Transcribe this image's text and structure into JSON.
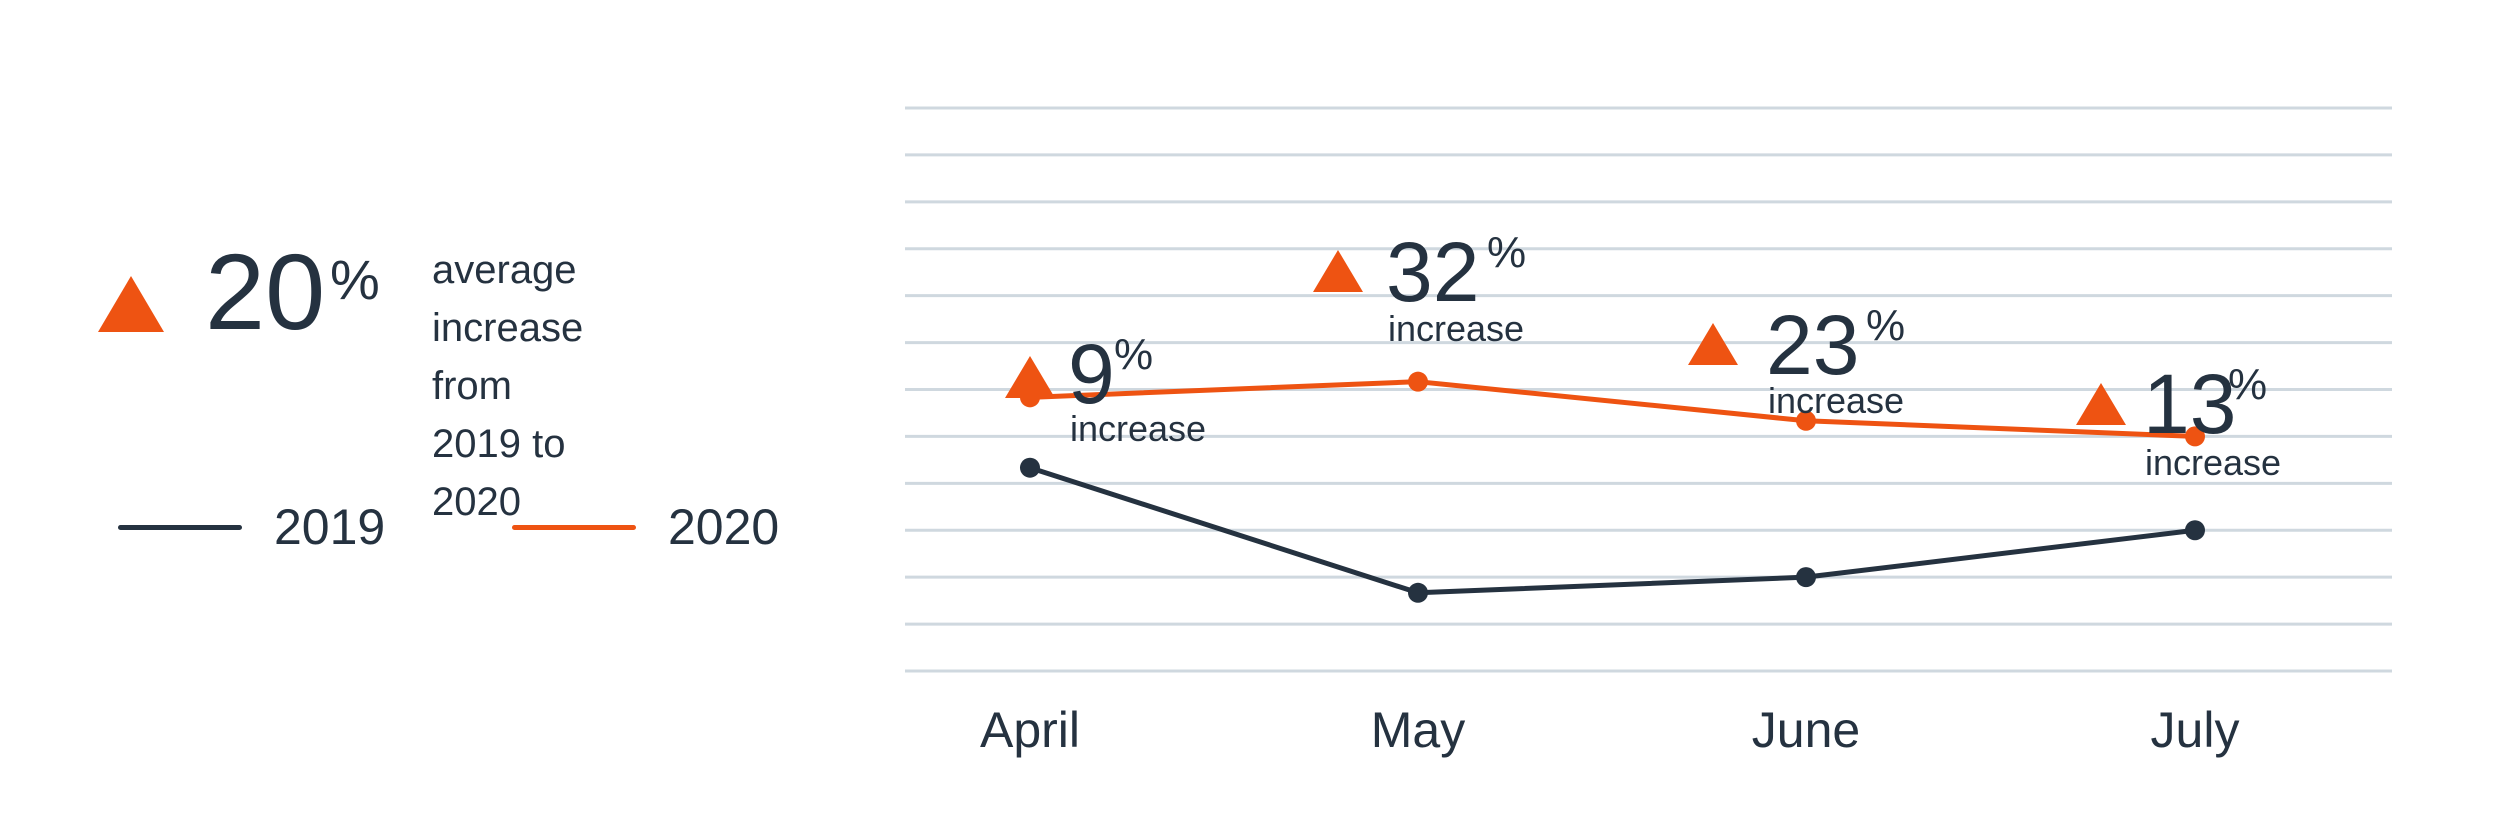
{
  "summary": {
    "value": "20",
    "unit": "%",
    "text_line1": "average increase",
    "text_line2": "from 2019 to 2020"
  },
  "legend": [
    {
      "label": "2019",
      "color": "#253240"
    },
    {
      "label": "2020",
      "color": "#ee5312"
    }
  ],
  "colors": {
    "series_2019": "#253240",
    "series_2020": "#ee5312",
    "grid": "#cfd8df",
    "text": "#253240",
    "accent": "#ee5312"
  },
  "chart_data": {
    "type": "line",
    "categories": [
      "April",
      "May",
      "June",
      "July"
    ],
    "series": [
      {
        "name": "2019",
        "values": [
          100,
          84,
          86,
          92
        ]
      },
      {
        "name": "2020",
        "values": [
          109,
          111,
          106,
          104
        ]
      }
    ],
    "annotations": [
      {
        "category": "April",
        "value": "9",
        "unit": "%",
        "text": "increase"
      },
      {
        "category": "May",
        "value": "32",
        "unit": "%",
        "text": "increase"
      },
      {
        "category": "June",
        "value": "23",
        "unit": "%",
        "text": "increase"
      },
      {
        "category": "July",
        "value": "13",
        "unit": "%",
        "text": "increase"
      }
    ],
    "ylim": [
      74,
      146
    ],
    "grid": true,
    "legend_position": "left"
  }
}
